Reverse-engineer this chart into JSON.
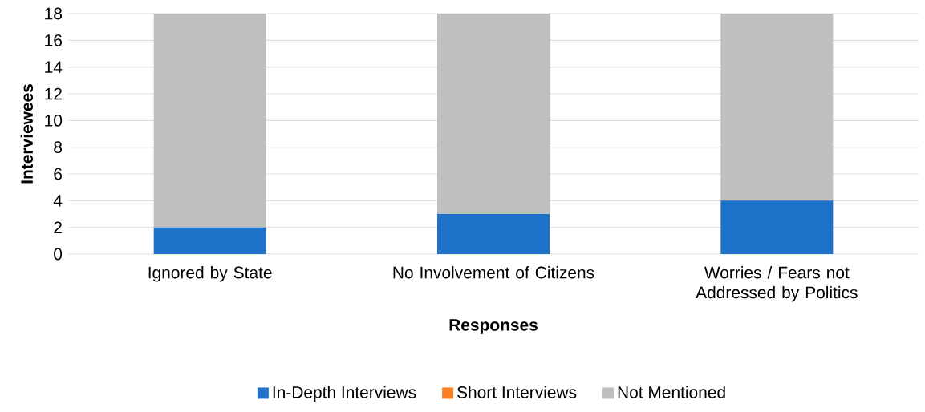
{
  "chart_data": {
    "type": "bar",
    "stacked": true,
    "xlabel": "Responses",
    "ylabel": "Interviewees",
    "categories": [
      "Ignored by State",
      "No Involvement of Citizens",
      "Worries / Fears not Addressed by Politics"
    ],
    "series": [
      {
        "name": "In-Depth Interviews",
        "color": "#1f72c9",
        "values": [
          2,
          3,
          4
        ]
      },
      {
        "name": "Short Interviews",
        "color": "#f58025",
        "values": [
          0,
          0,
          0
        ]
      },
      {
        "name": "Not Mentioned",
        "color": "#bfbfbf",
        "values": [
          16,
          15,
          14
        ]
      }
    ],
    "ylim": [
      0,
      18
    ],
    "yticks": [
      0,
      2,
      4,
      6,
      8,
      10,
      12,
      14,
      16,
      18
    ],
    "grid": "y",
    "legend": "bottom"
  }
}
